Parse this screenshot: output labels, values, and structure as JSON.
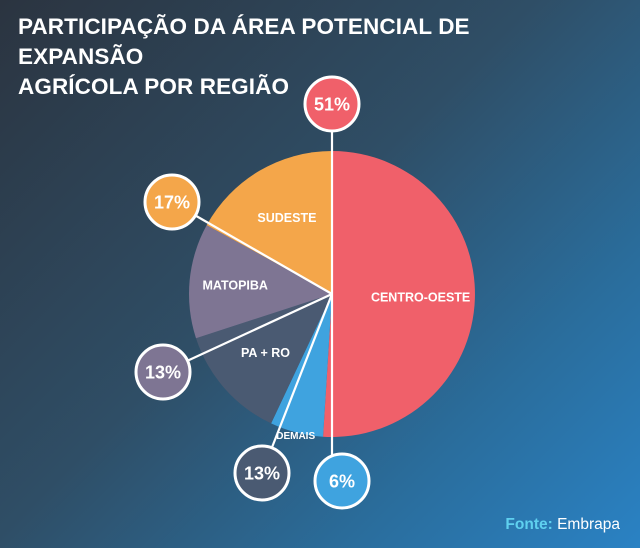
{
  "title_lines": [
    "PARTICIPAÇÃO DA ÁREA POTENCIAL DE EXPANSÃO",
    "AGRÍCOLA POR REGIÃO"
  ],
  "source": {
    "label": "Fonte:",
    "name": "Embrapa"
  },
  "colors": {
    "centro_oeste": "#f0606a",
    "sudeste": "#f4a64a",
    "matopiba": "#7e7593",
    "pa_ro": "#4a5a72",
    "demais": "#3fa3df"
  },
  "chart_data": {
    "type": "pie",
    "title": "PARTICIPAÇÃO DA ÁREA POTENCIAL DE EXPANSÃO AGRÍCOLA POR REGIÃO",
    "slices": [
      {
        "label": "CENTRO-OESTE",
        "value": 51,
        "value_label": "51%",
        "color": "#f0606a",
        "bubble_color": "#f0606a"
      },
      {
        "label": "DEMAIS",
        "value": 6,
        "value_label": "6%",
        "color": "#3fa3df",
        "bubble_color": "#3fa3df"
      },
      {
        "label": "PA + RO",
        "value": 13,
        "value_label": "13%",
        "color": "#4a5a72",
        "bubble_color": "#4a5a72"
      },
      {
        "label": "MATOPIBA",
        "value": 13,
        "value_label": "13%",
        "color": "#7e7593",
        "bubble_color": "#7e7593"
      },
      {
        "label": "SUDESTE",
        "value": 17,
        "value_label": "17%",
        "color": "#f4a64a",
        "bubble_color": "#f4a64a"
      }
    ]
  }
}
